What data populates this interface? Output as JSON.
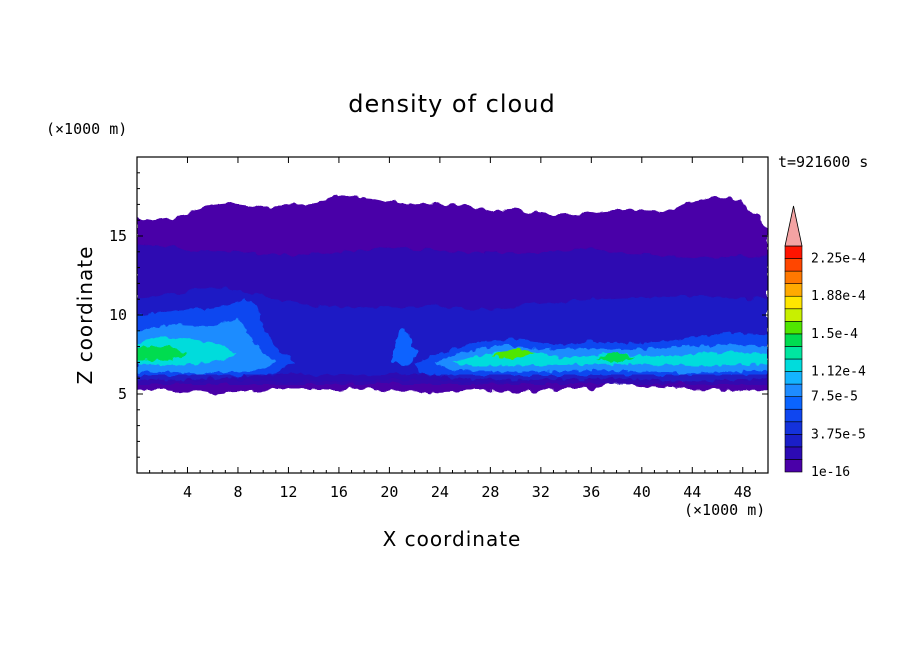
{
  "chart_data": {
    "type": "heatmap",
    "title": "density of cloud",
    "xlabel": "X coordinate",
    "ylabel": "Z coordinate",
    "x_unit": "(×1000 m)",
    "y_unit": "(×1000 m)",
    "time_label": "t=921600 s",
    "xlim": [
      0,
      50
    ],
    "ylim": [
      0,
      20
    ],
    "x_ticks": [
      4,
      8,
      12,
      16,
      20,
      24,
      28,
      32,
      36,
      40,
      44,
      48
    ],
    "y_ticks": [
      5,
      10,
      15
    ],
    "colorbar": {
      "labels": [
        {
          "value": 1e-16,
          "text": "1e-16"
        },
        {
          "value": 3.75e-05,
          "text": "3.75e-5"
        },
        {
          "value": 7.5e-05,
          "text": "7.5e-5"
        },
        {
          "value": 0.000112,
          "text": "1.12e-4"
        },
        {
          "value": 0.00015,
          "text": "1.5e-4"
        },
        {
          "value": 0.000188,
          "text": "1.88e-4"
        },
        {
          "value": 0.000225,
          "text": "2.25e-4"
        }
      ],
      "colors": [
        "#4a00a8",
        "#2c0ab4",
        "#1a1ec8",
        "#1432dc",
        "#0f46f0",
        "#0a64ff",
        "#1e8cff",
        "#14b4ff",
        "#00dcdc",
        "#00e6a0",
        "#00dc50",
        "#50e600",
        "#c8f000",
        "#ffe600",
        "#ffaa00",
        "#ff7800",
        "#ff4600",
        "#ff1400"
      ],
      "overflow_color": "#f4a3a3"
    },
    "contours": [
      {
        "level_index": 0,
        "x": [
          0,
          0.5,
          3,
          5,
          7,
          10,
          14,
          16,
          18,
          20,
          22,
          24,
          26,
          28,
          30,
          33,
          36,
          39,
          42,
          44,
          46,
          48,
          50,
          50,
          48,
          46,
          44,
          42,
          40,
          38,
          36,
          34,
          32,
          30,
          27,
          24,
          22,
          20,
          18,
          16,
          14,
          12,
          10,
          8,
          6,
          4,
          2,
          0
        ],
        "top": [
          16.2,
          16.0,
          16.2,
          16.8,
          17.1,
          16.8,
          17.0,
          17.6,
          17.4,
          17.2,
          17.0,
          17.1,
          16.9,
          16.6,
          16.7,
          16.3,
          16.5,
          16.7,
          16.6,
          17.2,
          17.5,
          17.2,
          15.5
        ],
        "bottom": [
          5.2,
          5.2,
          5.3,
          5.3,
          5.4,
          5.5,
          5.7,
          5.3,
          5.4,
          5.2,
          5.1,
          5.3,
          5.1,
          5.2,
          5.2,
          5.4,
          5.2,
          5.3,
          5.4,
          5.2,
          5.1,
          5.0,
          5.2,
          5.3,
          5.2
        ]
      },
      {
        "level_index": 1,
        "x": [
          0,
          50
        ],
        "band": [
          6.0,
          14.0
        ]
      },
      {
        "level_index": 2,
        "x": [
          0,
          50
        ],
        "band": [
          6.3,
          11.2
        ]
      },
      {
        "level_index": 5,
        "regions": "lower_cloud_deck"
      },
      {
        "level_index": 9,
        "regions": "peak_cores"
      }
    ]
  }
}
